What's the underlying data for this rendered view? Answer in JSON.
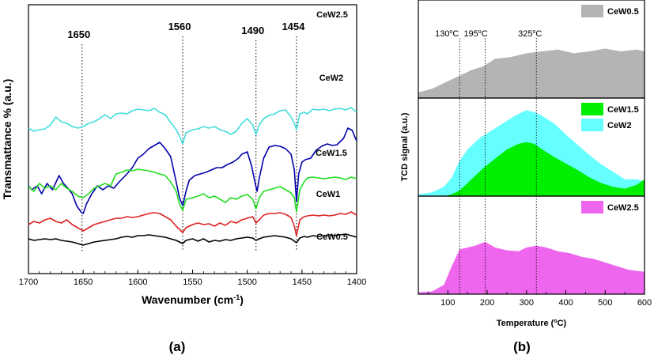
{
  "chart_data": [
    {
      "type": "line",
      "panel_label": "(a)",
      "xlabel": "Wavenumber (cm",
      "xlabel_sup": "-1",
      "xlabel_end": ")",
      "ylabel": "Transmattance % (a.u.)",
      "xlim": [
        1700,
        1400
      ],
      "xticks": [
        "1700",
        "1650",
        "1600",
        "1550",
        "1500",
        "1450",
        "1400"
      ],
      "grid": false,
      "peaks": [
        {
          "label": "1650",
          "x": 1651
        },
        {
          "label": "1560",
          "x": 1559
        },
        {
          "label": "1490",
          "x": 1492
        },
        {
          "label": "1454",
          "x": 1455
        }
      ],
      "series": [
        {
          "name": "CeW2.5",
          "color": "#44dddd",
          "x": [
            1700,
            1695,
            1690,
            1685,
            1680,
            1675,
            1670,
            1665,
            1660,
            1655,
            1650,
            1645,
            1640,
            1635,
            1630,
            1625,
            1620,
            1615,
            1610,
            1605,
            1600,
            1595,
            1590,
            1585,
            1580,
            1575,
            1570,
            1565,
            1562,
            1559,
            1556,
            1550,
            1545,
            1540,
            1535,
            1530,
            1525,
            1520,
            1515,
            1510,
            1505,
            1500,
            1495,
            1492,
            1489,
            1485,
            1480,
            1475,
            1470,
            1465,
            1460,
            1457,
            1455,
            1452,
            1448,
            1445,
            1440,
            1435,
            1430,
            1425,
            1420,
            1415,
            1410,
            1405,
            1400
          ],
          "y": [
            18,
            14,
            16,
            17,
            22,
            32,
            26,
            24,
            20,
            18,
            20,
            24,
            26,
            30,
            35,
            30,
            36,
            37,
            36,
            40,
            42,
            41,
            40,
            43,
            38,
            35,
            25,
            16,
            8,
            -2,
            12,
            16,
            17,
            20,
            18,
            20,
            16,
            14,
            10,
            14,
            24,
            30,
            22,
            10,
            22,
            30,
            34,
            36,
            40,
            41,
            32,
            24,
            16,
            36,
            38,
            36,
            42,
            41,
            42,
            40,
            42,
            43,
            41,
            44,
            38
          ]
        },
        {
          "name": "CeW2",
          "color": "#0000aa",
          "x": [
            1700,
            1697,
            1692,
            1688,
            1683,
            1678,
            1672,
            1668,
            1664,
            1660,
            1656,
            1652,
            1650,
            1647,
            1642,
            1637,
            1632,
            1627,
            1622,
            1617,
            1610,
            1605,
            1600,
            1595,
            1590,
            1585,
            1580,
            1575,
            1570,
            1565,
            1562,
            1559,
            1556,
            1553,
            1548,
            1543,
            1538,
            1533,
            1528,
            1523,
            1518,
            1513,
            1508,
            1505,
            1500,
            1496,
            1493,
            1491,
            1489,
            1485,
            1480,
            1475,
            1470,
            1465,
            1460,
            1457,
            1455,
            1453,
            1450,
            1447,
            1442,
            1437,
            1432,
            1427,
            1422,
            1418,
            1412,
            1408,
            1404,
            1402,
            1400
          ],
          "y": [
            -55,
            -60,
            -55,
            -65,
            -52,
            -60,
            -42,
            -52,
            -58,
            -65,
            -80,
            -88,
            -90,
            -78,
            -65,
            -55,
            -60,
            -55,
            -58,
            -50,
            -40,
            -32,
            -20,
            -15,
            -8,
            -4,
            0,
            -8,
            -18,
            -50,
            -70,
            -80,
            -62,
            -48,
            -42,
            -40,
            -38,
            -35,
            -32,
            -32,
            -28,
            -25,
            -20,
            -15,
            -12,
            -30,
            -50,
            -62,
            -45,
            -20,
            -6,
            -4,
            -5,
            -8,
            -15,
            -35,
            -75,
            -40,
            -25,
            -22,
            -20,
            -10,
            -5,
            -2,
            -4,
            -3,
            5,
            18,
            15,
            8,
            2
          ]
        },
        {
          "name": "CeW1.5",
          "color": "#22dd22",
          "x": [
            1700,
            1695,
            1690,
            1685,
            1680,
            1675,
            1670,
            1665,
            1660,
            1655,
            1650,
            1645,
            1640,
            1635,
            1630,
            1625,
            1620,
            1615,
            1610,
            1605,
            1600,
            1595,
            1590,
            1585,
            1580,
            1575,
            1570,
            1565,
            1562,
            1559,
            1556,
            1550,
            1545,
            1540,
            1535,
            1530,
            1525,
            1520,
            1515,
            1510,
            1505,
            1500,
            1495,
            1492,
            1489,
            1485,
            1480,
            1475,
            1470,
            1465,
            1460,
            1457,
            1455,
            1452,
            1448,
            1445,
            1440,
            1435,
            1430,
            1425,
            1420,
            1415,
            1410,
            1405,
            1400
          ],
          "y": [
            -56,
            -62,
            -52,
            -58,
            -55,
            -60,
            -52,
            -58,
            -62,
            -68,
            -70,
            -65,
            -58,
            -55,
            -52,
            -55,
            -40,
            -38,
            -35,
            -36,
            -34,
            -35,
            -36,
            -38,
            -40,
            -42,
            -50,
            -62,
            -78,
            -86,
            -72,
            -70,
            -68,
            -65,
            -70,
            -68,
            -72,
            -76,
            -70,
            -72,
            -68,
            -66,
            -72,
            -84,
            -70,
            -62,
            -60,
            -58,
            -56,
            -60,
            -64,
            -70,
            -88,
            -60,
            -50,
            -45,
            -44,
            -45,
            -46,
            -45,
            -44,
            -45,
            -47,
            -44,
            -46
          ]
        },
        {
          "name": "CeW1",
          "color": "#dd2222",
          "x": [
            1700,
            1695,
            1690,
            1685,
            1680,
            1675,
            1670,
            1665,
            1660,
            1655,
            1650,
            1645,
            1640,
            1635,
            1630,
            1625,
            1620,
            1615,
            1610,
            1605,
            1600,
            1595,
            1590,
            1585,
            1580,
            1575,
            1570,
            1565,
            1562,
            1559,
            1556,
            1550,
            1545,
            1540,
            1535,
            1530,
            1525,
            1520,
            1515,
            1510,
            1505,
            1500,
            1495,
            1492,
            1489,
            1485,
            1480,
            1475,
            1470,
            1465,
            1460,
            1457,
            1455,
            1452,
            1448,
            1445,
            1440,
            1435,
            1430,
            1425,
            1420,
            1415,
            1410,
            1405,
            1400
          ],
          "y": [
            -104,
            -100,
            -102,
            -98,
            -96,
            -100,
            -102,
            -98,
            -104,
            -108,
            -112,
            -108,
            -104,
            -102,
            -100,
            -98,
            -96,
            -96,
            -94,
            -95,
            -94,
            -92,
            -90,
            -89,
            -90,
            -94,
            -98,
            -106,
            -110,
            -114,
            -108,
            -104,
            -102,
            -104,
            -103,
            -106,
            -102,
            -105,
            -100,
            -102,
            -98,
            -96,
            -94,
            -102,
            -98,
            -92,
            -90,
            -90,
            -89,
            -91,
            -95,
            -106,
            -118,
            -98,
            -94,
            -93,
            -92,
            -93,
            -92,
            -93,
            -92,
            -90,
            -91,
            -88,
            -92
          ]
        },
        {
          "name": "CeW0.5",
          "color": "#000000",
          "x": [
            1700,
            1695,
            1690,
            1685,
            1680,
            1675,
            1670,
            1665,
            1660,
            1655,
            1650,
            1645,
            1640,
            1635,
            1630,
            1625,
            1620,
            1615,
            1610,
            1605,
            1600,
            1595,
            1590,
            1585,
            1580,
            1575,
            1570,
            1565,
            1562,
            1559,
            1556,
            1550,
            1545,
            1540,
            1535,
            1530,
            1525,
            1520,
            1515,
            1510,
            1505,
            1500,
            1495,
            1492,
            1489,
            1485,
            1480,
            1475,
            1470,
            1465,
            1460,
            1457,
            1455,
            1452,
            1448,
            1445,
            1440,
            1435,
            1430,
            1425,
            1420,
            1415,
            1410,
            1405,
            1400
          ],
          "y": [
            -122,
            -124,
            -123,
            -122,
            -123,
            -122,
            -124,
            -125,
            -126,
            -128,
            -130,
            -128,
            -126,
            -125,
            -124,
            -123,
            -122,
            -120,
            -119,
            -120,
            -118,
            -118,
            -117,
            -118,
            -119,
            -120,
            -122,
            -124,
            -126,
            -128,
            -124,
            -122,
            -125,
            -122,
            -126,
            -124,
            -125,
            -123,
            -124,
            -122,
            -121,
            -120,
            -121,
            -124,
            -122,
            -120,
            -119,
            -118,
            -119,
            -120,
            -122,
            -125,
            -127,
            -121,
            -119,
            -120,
            -118,
            -119,
            -118,
            -117,
            -118,
            -117,
            -116,
            -118,
            -120
          ]
        }
      ],
      "series_labels": [
        "CeW2.5",
        "CeW2",
        "CeW1.5",
        "CeW1",
        "CeW0.5"
      ]
    },
    {
      "type": "area",
      "panel_label": "(b)",
      "xlabel": "Temperature (",
      "xlabel_sup": "o",
      "xlabel_end": "C)",
      "ylabel": "TCD signal (a.u.)",
      "xlim": [
        25,
        600
      ],
      "xticks": [
        100,
        200,
        300,
        400,
        500,
        600
      ],
      "grid": false,
      "temperature_markers": [
        {
          "label": "130",
          "x": 130
        },
        {
          "label": "195",
          "x": 195
        },
        {
          "label": "325",
          "x": 325
        }
      ],
      "degree_sup": "o",
      "degree_unit": "C",
      "subplots": [
        {
          "legend": [
            {
              "name": "CeW0.5",
              "color": "#b4b4b4"
            }
          ],
          "series": [
            {
              "name": "CeW0.5",
              "color": "#b4b4b4",
              "x": [
                25,
                60,
                100,
                130,
                160,
                190,
                220,
                260,
                300,
                340,
                380,
                420,
                460,
                500,
                540,
                580,
                600
              ],
              "y": [
                0.06,
                0.1,
                0.18,
                0.24,
                0.3,
                0.34,
                0.42,
                0.44,
                0.48,
                0.5,
                0.52,
                0.48,
                0.5,
                0.53,
                0.5,
                0.52,
                0.5
              ]
            }
          ]
        },
        {
          "legend": [
            {
              "name": "CeW1.5",
              "color": "#00ee00"
            },
            {
              "name": "CeW2",
              "color": "#66ffff"
            }
          ],
          "series": [
            {
              "name": "CeW2",
              "color": "#66ffff",
              "x": [
                25,
                60,
                90,
                110,
                130,
                150,
                180,
                210,
                240,
                270,
                300,
                320,
                340,
                370,
                400,
                430,
                460,
                490,
                520,
                550,
                580,
                600
              ],
              "y": [
                0.02,
                0.04,
                0.1,
                0.2,
                0.38,
                0.5,
                0.62,
                0.7,
                0.78,
                0.86,
                0.92,
                0.9,
                0.86,
                0.78,
                0.66,
                0.55,
                0.44,
                0.34,
                0.26,
                0.18,
                0.18,
                0.16
              ]
            },
            {
              "name": "CeW1.5",
              "color": "#00ee00",
              "x": [
                25,
                90,
                110,
                130,
                160,
                190,
                220,
                250,
                280,
                300,
                320,
                340,
                370,
                400,
                430,
                460,
                490,
                520,
                550,
                580,
                600
              ],
              "y": [
                0.0,
                0.0,
                0.02,
                0.06,
                0.18,
                0.3,
                0.4,
                0.5,
                0.56,
                0.58,
                0.56,
                0.5,
                0.42,
                0.35,
                0.28,
                0.2,
                0.14,
                0.1,
                0.08,
                0.12,
                0.18
              ]
            }
          ]
        },
        {
          "legend": [
            {
              "name": "CeW2.5",
              "color": "#ee66ee"
            }
          ],
          "series": [
            {
              "name": "CeW2.5",
              "color": "#ee66ee",
              "x": [
                25,
                60,
                90,
                110,
                130,
                150,
                170,
                195,
                220,
                250,
                280,
                300,
                325,
                350,
                380,
                410,
                440,
                470,
                500,
                530,
                560,
                600
              ],
              "y": [
                0.02,
                0.03,
                0.1,
                0.3,
                0.48,
                0.5,
                0.52,
                0.56,
                0.5,
                0.47,
                0.46,
                0.5,
                0.52,
                0.5,
                0.46,
                0.44,
                0.4,
                0.38,
                0.34,
                0.3,
                0.26,
                0.24
              ]
            }
          ]
        }
      ]
    }
  ]
}
